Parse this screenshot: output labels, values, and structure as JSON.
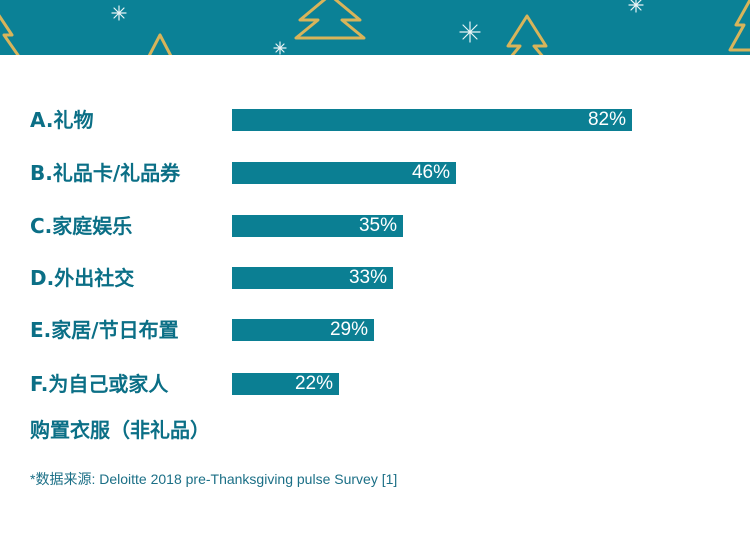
{
  "chart_data": {
    "type": "bar",
    "orientation": "horizontal",
    "categories": [
      "A.礼物",
      "B.礼品卡/礼品券",
      "C.家庭娱乐",
      "D.外出社交",
      "E.家居/节日布置",
      "F.为自己或家人"
    ],
    "category_second_line": {
      "F.为自己或家人": "购置衣服（非礼品）"
    },
    "values": [
      82,
      46,
      35,
      33,
      29,
      22
    ],
    "value_labels": [
      "82%",
      "46%",
      "35%",
      "33%",
      "29%",
      "22%"
    ],
    "xlim": [
      0,
      100
    ],
    "grid": false,
    "legend": "none",
    "bar_color": "#0b7f93",
    "label_color": "#0b6f86"
  },
  "footnote": "*数据来源: Deloitte 2018 pre-Thanksgiving pulse Survey [1]",
  "banner_color": "#0b8196"
}
